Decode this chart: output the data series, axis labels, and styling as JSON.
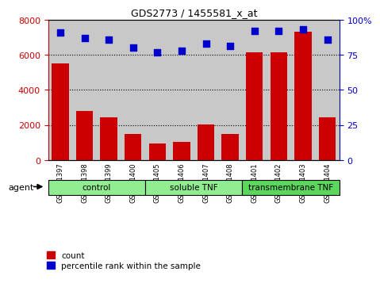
{
  "title": "GDS2773 / 1455581_x_at",
  "samples": [
    "GSM101397",
    "GSM101398",
    "GSM101399",
    "GSM101400",
    "GSM101405",
    "GSM101406",
    "GSM101407",
    "GSM101408",
    "GSM101401",
    "GSM101402",
    "GSM101403",
    "GSM101404"
  ],
  "counts": [
    5500,
    2800,
    2450,
    1500,
    950,
    1050,
    2050,
    1500,
    6150,
    6150,
    7300,
    2450
  ],
  "percentiles": [
    91,
    87,
    86,
    80,
    77,
    78,
    83,
    81,
    92,
    92,
    93,
    86
  ],
  "groups": [
    {
      "label": "control",
      "start": 0,
      "end": 4,
      "color": "#90EE90"
    },
    {
      "label": "soluble TNF",
      "start": 4,
      "end": 8,
      "color": "#90EE90"
    },
    {
      "label": "transmembrane TNF",
      "start": 8,
      "end": 12,
      "color": "#5CD65C"
    }
  ],
  "bar_color": "#CC0000",
  "dot_color": "#0000CC",
  "dot_size": 28,
  "left_ylim": [
    0,
    8000
  ],
  "right_ylim": [
    0,
    100
  ],
  "left_yticks": [
    0,
    2000,
    4000,
    6000,
    8000
  ],
  "right_yticks": [
    0,
    25,
    50,
    75,
    100
  ],
  "right_yticklabels": [
    "0",
    "25",
    "50",
    "75",
    "100%"
  ],
  "tick_color_left": "#CC0000",
  "tick_color_right": "#0000CC",
  "grid_yticks": [
    2000,
    4000,
    6000
  ],
  "agent_label": "agent",
  "legend_count": "count",
  "legend_percentile": "percentile rank within the sample",
  "bgcolor": "white",
  "sample_area_color": "#C8C8C8",
  "figsize": [
    4.83,
    3.54
  ],
  "dpi": 100
}
